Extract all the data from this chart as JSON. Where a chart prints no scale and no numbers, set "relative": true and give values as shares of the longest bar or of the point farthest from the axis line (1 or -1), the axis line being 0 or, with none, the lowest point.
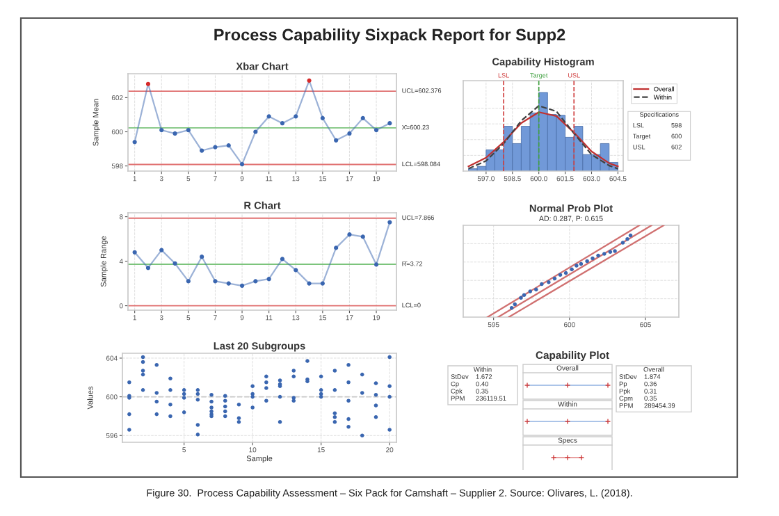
{
  "chart_data": [
    {
      "type": "other",
      "title": "Process Capability Sixpack Report for Supp2",
      "annotations": [
        "Figure 30.  Process Capability Assessment – Six Pack for Camshaft – Supplier 2. Source: Olivares, L. (2018)."
      ]
    },
    {
      "type": "line",
      "title": "Xbar Chart",
      "ylabel": "Sample Mean",
      "x": [
        1,
        2,
        3,
        4,
        5,
        6,
        7,
        8,
        9,
        10,
        11,
        12,
        13,
        14,
        15,
        16,
        17,
        18,
        19,
        20
      ],
      "xlim": [
        0.5,
        20.5
      ],
      "xticks": [
        1,
        3,
        5,
        7,
        9,
        11,
        13,
        15,
        17,
        19
      ],
      "ylim": [
        597.7,
        603.4
      ],
      "yticks": [
        598,
        600,
        602
      ],
      "grid": "x",
      "marker": "circle",
      "series": [
        {
          "color": "#3a66b0",
          "colors": [
            "#3a66b0",
            "#d62a2a",
            "#3a66b0",
            "#3a66b0",
            "#3a66b0",
            "#3a66b0",
            "#3a66b0",
            "#3a66b0",
            "#3a66b0",
            "#3a66b0",
            "#3a66b0",
            "#3a66b0",
            "#3a66b0",
            "#d62a2a",
            "#3a66b0",
            "#3a66b0",
            "#3a66b0",
            "#3a66b0",
            "#3a66b0",
            "#3a66b0"
          ],
          "values": [
            599.4,
            602.8,
            600.1,
            599.9,
            600.1,
            598.9,
            599.1,
            599.2,
            598.1,
            600.0,
            600.9,
            600.5,
            600.9,
            603.0,
            600.8,
            599.5,
            599.9,
            600.8,
            600.1,
            600.5
          ]
        }
      ],
      "ref_lines": [
        {
          "axis": "y",
          "value": 602.376,
          "label": "UCL=602.376",
          "color": "#e07070"
        },
        {
          "axis": "y",
          "value": 600.23,
          "label": "X̄=600.23",
          "color": "#7cc47c"
        },
        {
          "axis": "y",
          "value": 598.084,
          "label": "LCL=598.084",
          "color": "#e07070"
        }
      ]
    },
    {
      "type": "line",
      "title": "R Chart",
      "ylabel": "Sample Range",
      "x": [
        1,
        2,
        3,
        4,
        5,
        6,
        7,
        8,
        9,
        10,
        11,
        12,
        13,
        14,
        15,
        16,
        17,
        18,
        19,
        20
      ],
      "xlim": [
        0.5,
        20.5
      ],
      "xticks": [
        1,
        3,
        5,
        7,
        9,
        11,
        13,
        15,
        17,
        19
      ],
      "ylim": [
        -0.4,
        8.35
      ],
      "yticks": [
        0,
        4,
        8
      ],
      "grid": "x",
      "marker": "circle",
      "series": [
        {
          "color": "#3a66b0",
          "values": [
            4.8,
            3.4,
            5.0,
            3.8,
            2.2,
            4.4,
            2.2,
            2.0,
            1.8,
            2.2,
            2.4,
            4.2,
            3.2,
            2.0,
            2.0,
            5.2,
            6.4,
            6.2,
            3.7,
            7.5
          ]
        }
      ],
      "ref_lines": [
        {
          "axis": "y",
          "value": 7.866,
          "label": "UCL=7.866",
          "color": "#e07070"
        },
        {
          "axis": "y",
          "value": 3.72,
          "label": "R̄=3.72",
          "color": "#7cc47c"
        },
        {
          "axis": "y",
          "value": 0,
          "label": "LCL=0",
          "color": "#e07070"
        }
      ]
    },
    {
      "type": "scatter",
      "title": "Last 20 Subgroups",
      "xlabel": "Sample",
      "ylabel": "Values",
      "xlim": [
        0.5,
        20.5
      ],
      "xticks": [
        5,
        10,
        15,
        20
      ],
      "ylim": [
        595.3,
        604.5
      ],
      "yticks": [
        596,
        600,
        604
      ],
      "grid": true,
      "marker": "circle",
      "series": [
        {
          "color": "#3a66b0",
          "x": [
            1,
            1,
            1,
            1,
            1,
            2,
            2,
            2,
            2,
            2,
            3,
            3,
            3,
            3,
            4,
            4,
            4,
            4,
            5,
            5,
            5,
            5,
            6,
            6,
            6,
            6,
            6,
            7,
            7,
            7,
            7,
            7,
            7,
            8,
            8,
            8,
            8,
            8,
            9,
            9,
            9,
            10,
            10,
            10,
            10,
            11,
            11,
            11,
            11,
            12,
            12,
            12,
            12,
            12,
            13,
            13,
            13,
            13,
            14,
            14,
            14,
            15,
            15,
            15,
            15,
            16,
            16,
            16,
            16,
            16,
            17,
            17,
            17,
            17,
            17,
            18,
            18,
            18,
            19,
            19,
            19,
            19,
            20,
            20,
            20,
            20
          ],
          "values": [
            601.5,
            600.1,
            599.9,
            598.2,
            596.6,
            604.1,
            603.6,
            602.7,
            602.3,
            600.7,
            603.3,
            600.4,
            599.5,
            598.2,
            601.9,
            600.7,
            599.2,
            598.0,
            600.7,
            600.3,
            599.9,
            598.4,
            600.7,
            600.3,
            599.7,
            597.1,
            596.1,
            600.2,
            599.5,
            598.9,
            598.5,
            598.2,
            598.0,
            600.1,
            599.6,
            599.0,
            598.5,
            598.0,
            599.2,
            597.8,
            597.4,
            601.1,
            600.3,
            600.0,
            598.9,
            602.1,
            601.5,
            600.9,
            599.6,
            601.7,
            601.3,
            601.1,
            600.0,
            597.4,
            602.7,
            602.1,
            599.9,
            599.6,
            603.7,
            601.8,
            601.6,
            602.1,
            600.7,
            600.3,
            600.0,
            602.7,
            600.7,
            598.3,
            597.9,
            597.4,
            603.3,
            601.5,
            599.6,
            597.7,
            596.9,
            602.3,
            600.4,
            596.0,
            601.4,
            600.2,
            599.1,
            597.9,
            604.1,
            601.1,
            600.0,
            596.6
          ]
        }
      ],
      "ref_lines": [
        {
          "axis": "y",
          "value": 600,
          "color": "#c8c8c8",
          "line_style": "dashed"
        }
      ]
    },
    {
      "type": "histogram",
      "title": "Capability Histogram",
      "relative": true,
      "color": "#7199d8",
      "bins": [
        596.0,
        596.5,
        597.0,
        597.5,
        598.0,
        598.5,
        599.0,
        599.5,
        600.0,
        600.5,
        601.0,
        601.5,
        602.0,
        602.5,
        603.0,
        603.5,
        604.0,
        604.5
      ],
      "values": [
        0.03,
        0.06,
        0.27,
        0.27,
        0.57,
        0.35,
        0.57,
        0.74,
        1,
        0.72,
        0.71,
        0.43,
        0.57,
        0.21,
        0.21,
        0.35,
        0.11
      ],
      "xlim": [
        595.7,
        604.8
      ],
      "xticks": [
        {
          "value": 597,
          "label": "597.0"
        },
        {
          "value": 598.5,
          "label": "598.5"
        },
        {
          "value": 600,
          "label": "600.0"
        },
        {
          "value": 601.5,
          "label": "601.5"
        },
        {
          "value": 603,
          "label": "603.0"
        },
        {
          "value": 604.5,
          "label": "604.5"
        }
      ],
      "tick_labels": "x",
      "grid": true,
      "legend": "right",
      "series": [
        {
          "type": "line",
          "name": "Overall",
          "color": "#c03030",
          "line_style": "solid",
          "x": [
            596,
            597,
            598,
            599,
            600,
            601,
            602,
            603,
            604,
            604.5
          ],
          "values": [
            0.06,
            0.17,
            0.37,
            0.61,
            0.75,
            0.7,
            0.49,
            0.25,
            0.1,
            0.06
          ]
        },
        {
          "type": "line",
          "name": "Within",
          "color": "#404040",
          "line_style": "dashed",
          "x": [
            596,
            597,
            598,
            599,
            600,
            601,
            602,
            603,
            604,
            604.5
          ],
          "values": [
            0.03,
            0.13,
            0.35,
            0.64,
            0.83,
            0.76,
            0.48,
            0.21,
            0.07,
            0.03
          ]
        }
      ],
      "ref_lines": [
        {
          "axis": "x",
          "value": 598,
          "label": "LSL",
          "color": "#d04040",
          "line_style": "dashed"
        },
        {
          "axis": "x",
          "value": 600,
          "label": "Target",
          "color": "#40a040",
          "line_style": "dashed"
        },
        {
          "axis": "x",
          "value": 602,
          "label": "USL",
          "color": "#d04040",
          "line_style": "dashed"
        }
      ],
      "annotations": [
        "Specifications",
        "LSL  598",
        "Target  600",
        "USL  602"
      ]
    },
    {
      "type": "scatter",
      "title": "Normal Prob Plot",
      "subtitle": "AD: 0.287, P: 0.615",
      "relative": true,
      "xlim": [
        593.0,
        607.2
      ],
      "xticks": [
        595,
        600,
        605
      ],
      "tick_labels": "x",
      "grid": true,
      "series": [
        {
          "color": "#3a66b0",
          "marker": "circle",
          "x": [
            596.19,
            596.4,
            596.8,
            597.01,
            597.41,
            597.8,
            598.17,
            598.63,
            599.02,
            599.39,
            599.76,
            600.15,
            600.46,
            600.76,
            601.16,
            601.52,
            601.89,
            602.29,
            602.68,
            602.99,
            603.51,
            603.81,
            604.02
          ],
          "values": [
            0.1,
            0.14,
            0.21,
            0.24,
            0.28,
            0.3,
            0.36,
            0.38,
            0.42,
            0.46,
            0.48,
            0.52,
            0.56,
            0.58,
            0.61,
            0.64,
            0.67,
            0.69,
            0.71,
            0.72,
            0.81,
            0.85,
            0.89
          ]
        },
        {
          "type": "line",
          "color": "#d07070",
          "x": [
            594.6,
            604.6
          ],
          "values": [
            0,
            1
          ]
        },
        {
          "type": "line",
          "color": "#d07070",
          "x": [
            595.3,
            605.4
          ],
          "values": [
            0,
            1
          ]
        },
        {
          "type": "line",
          "color": "#d07070",
          "x": [
            596.0,
            606.2
          ],
          "values": [
            0,
            1
          ]
        }
      ]
    },
    {
      "type": "other",
      "title": "Capability Plot",
      "annotations": [
        "Within\nStDev 1.672\nCp 0.40\nCpk 0.35\nPPM 236119.51",
        "Overall\nStDev 1.874\nPp 0.36\nPpk 0.31\nCpm 0.35\nPPM 289454.39",
        "Overall",
        "Within",
        "Specs"
      ]
    }
  ]
}
